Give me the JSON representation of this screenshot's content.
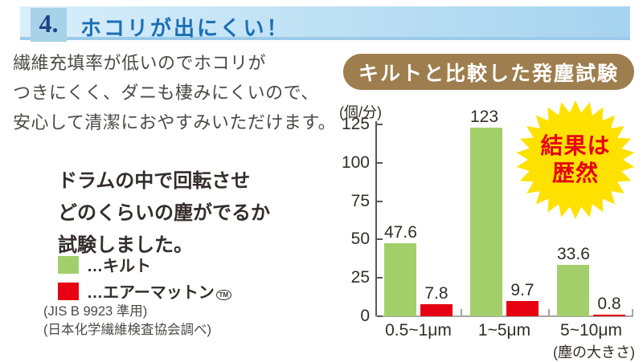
{
  "header": {
    "number": "4.",
    "title": "ホコリが出にくい！"
  },
  "intro": {
    "lines": [
      "繊維充填率が低いのでホコリが",
      "つきにくく、ダニも棲みにくいので、",
      "安心して清潔におやすみいただけます。"
    ]
  },
  "method": {
    "lines": [
      "ドラムの中で回転させ",
      "どのくらいの塵がでるか",
      "試験しました。"
    ]
  },
  "legend": {
    "items": [
      {
        "label": "…キルト",
        "color": "#a3cf6a"
      },
      {
        "label": "…エアーマットン",
        "color": "#e60012"
      }
    ],
    "tm_label": "TM"
  },
  "notes": {
    "lines": [
      "(JIS B 9923 準用)",
      "(日本化学繊維検査協会調べ)"
    ]
  },
  "badge": {
    "label": "キルトと比較した発塵試験",
    "color": "#9e7e4e"
  },
  "starburst": {
    "line1": "結果は",
    "line2": "歴然",
    "fill": "#ffe100",
    "text_color": "#e60012"
  },
  "chart_data": {
    "type": "bar",
    "title": "キルトと比較した発塵試験",
    "unit_label": "(個/分)",
    "xlabel": "(塵の大きさ)",
    "categories": [
      "0.5~1μm",
      "1~5μm",
      "5~10μm"
    ],
    "series": [
      {
        "name": "キルト",
        "color": "#a3cf6a",
        "values": [
          47.6,
          123,
          33.6
        ]
      },
      {
        "name": "エアーマットン",
        "color": "#e60012",
        "values": [
          7.8,
          9.7,
          0.8
        ]
      }
    ],
    "yticks": [
      0,
      25,
      50,
      75,
      100,
      125
    ],
    "ylim": [
      0,
      125
    ],
    "grid": false,
    "legend_position": "left-panel"
  }
}
